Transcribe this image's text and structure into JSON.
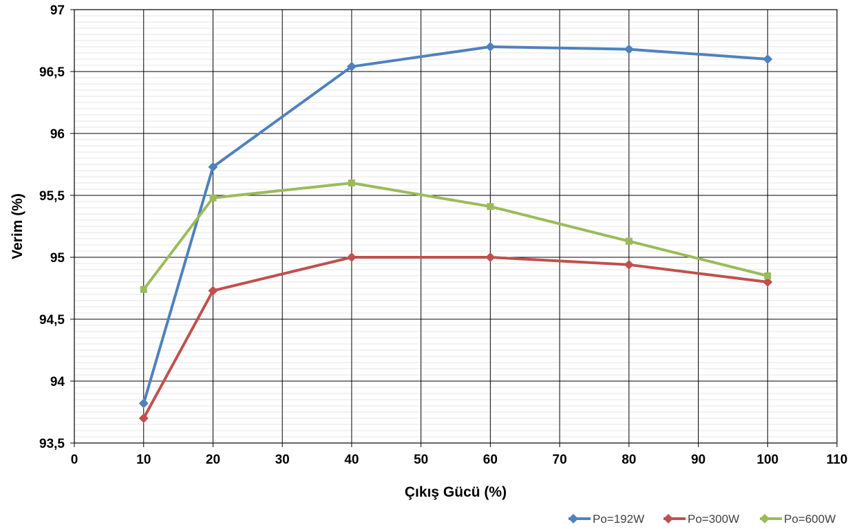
{
  "chart_data": {
    "type": "line",
    "title": "",
    "xlabel": "Çıkış Gücü (%)",
    "ylabel": "Verim (%)",
    "xlim": [
      0,
      110
    ],
    "ylim": [
      93.5,
      97
    ],
    "x_ticks": [
      "0",
      "10",
      "20",
      "30",
      "40",
      "50",
      "60",
      "70",
      "80",
      "90",
      "100",
      "110"
    ],
    "y_ticks": [
      "93,5",
      "94",
      "94,5",
      "95",
      "95,5",
      "96",
      "96,5",
      "97"
    ],
    "grid": true,
    "legend_position": "bottom-right",
    "series": [
      {
        "name": "Po=192W",
        "color": "#4f81bd",
        "marker": "diamond",
        "x": [
          10,
          20,
          40,
          60,
          80,
          100
        ],
        "values": [
          93.82,
          95.73,
          96.54,
          96.7,
          96.68,
          96.6
        ]
      },
      {
        "name": "Po=300W",
        "color": "#c0504d",
        "marker": "diamond",
        "x": [
          10,
          20,
          40,
          60,
          80,
          100
        ],
        "values": [
          93.7,
          94.73,
          95.0,
          95.0,
          94.94,
          94.8
        ]
      },
      {
        "name": "Po=600W",
        "color": "#9bbb59",
        "marker": "square",
        "x": [
          10,
          20,
          40,
          60,
          80,
          100
        ],
        "values": [
          94.74,
          95.48,
          95.6,
          95.41,
          95.13,
          94.85
        ]
      }
    ]
  }
}
